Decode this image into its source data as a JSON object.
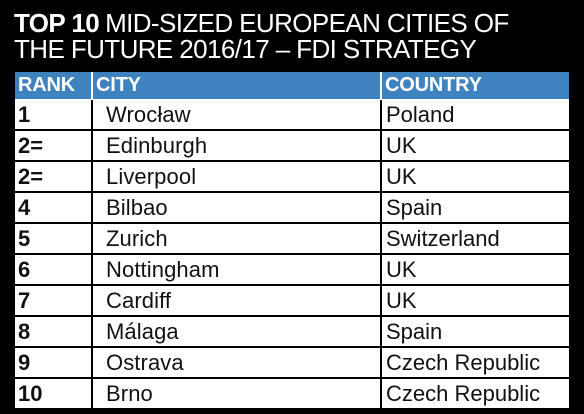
{
  "title": {
    "bold": "TOP 10",
    "line1_rest": "MID-SIZED EUROPEAN CITIES OF",
    "line2": "THE FUTURE 2016/17 – FDI STRATEGY"
  },
  "table": {
    "headers": {
      "rank": "RANK",
      "city": "CITY",
      "country": "COUNTRY"
    },
    "rows": [
      {
        "rank": "1",
        "city": "Wrocław",
        "country": "Poland"
      },
      {
        "rank": "2=",
        "city": "Edinburgh",
        "country": "UK"
      },
      {
        "rank": "2=",
        "city": "Liverpool",
        "country": "UK"
      },
      {
        "rank": "4",
        "city": "Bilbao",
        "country": "Spain"
      },
      {
        "rank": "5",
        "city": "Zurich",
        "country": "Switzerland"
      },
      {
        "rank": "6",
        "city": "Nottingham",
        "country": "UK"
      },
      {
        "rank": "7",
        "city": "Cardiff",
        "country": "UK"
      },
      {
        "rank": "8",
        "city": "Málaga",
        "country": "Spain"
      },
      {
        "rank": "9",
        "city": "Ostrava",
        "country": "Czech Republic"
      },
      {
        "rank": "10",
        "city": "Brno",
        "country": "Czech Republic"
      }
    ]
  },
  "colors": {
    "header_bg": "#3f82c0",
    "page_bg": "#000000",
    "cell_bg": "#ffffff"
  }
}
